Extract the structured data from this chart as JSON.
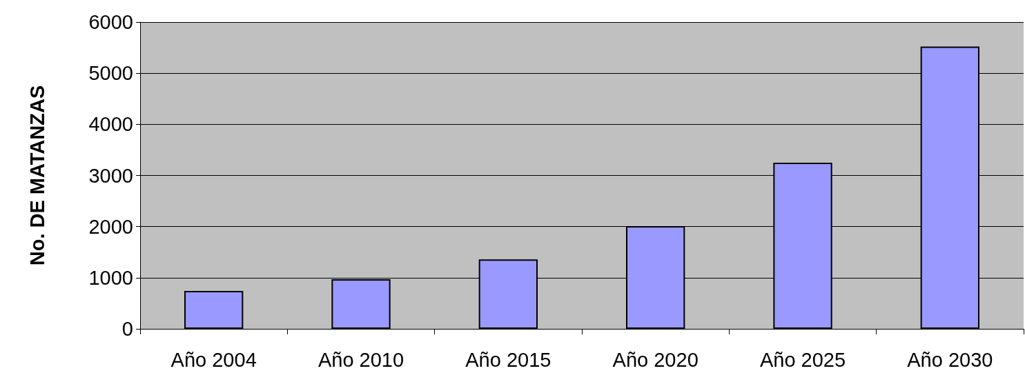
{
  "chart_data": {
    "type": "bar",
    "ylabel": "No. DE MATANZAS",
    "categories": [
      "Año 2004",
      "Año 2010",
      "Año 2015",
      "Año 2020",
      "Año 2025",
      "Año 2030"
    ],
    "values": [
      740,
      970,
      1360,
      2010,
      3250,
      5520
    ],
    "color": "#9999ff",
    "ylim": [
      0,
      6000
    ],
    "yticks": [
      0,
      1000,
      2000,
      3000,
      4000,
      5000,
      6000
    ],
    "grid": "y"
  }
}
